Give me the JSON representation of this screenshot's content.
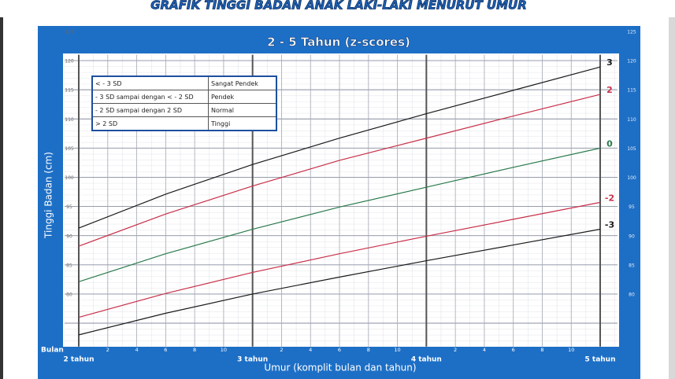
{
  "header": {
    "title": "GRAFIK TINGGI BADAN ANAK LAKI-LAKI MENURUT UMUR"
  },
  "legend_table": [
    {
      "range": "< - 3 SD",
      "label": "Sangat Pendek"
    },
    {
      "range": "- 3 SD sampai dengan < - 2 SD",
      "label": "Pendek"
    },
    {
      "range": "- 2 SD sampai dengan 2 SD",
      "label": "Normal"
    },
    {
      "range": "> 2 SD",
      "label": "Tinggi"
    }
  ],
  "chart_data": {
    "type": "line",
    "title": "2  - 5 Tahun (z-scores)",
    "y_label": "Tinggi Badan (cm)",
    "x_label": "Umur (komplit bulan dan tahun)",
    "x_unit_label": "Bulan",
    "x": [
      24,
      30,
      36,
      42,
      48,
      54,
      60
    ],
    "xlim": [
      24,
      60
    ],
    "ylim": [
      76,
      126
    ],
    "xticks": [
      {
        "value": 24,
        "label": "2 tahun"
      },
      {
        "value": 26,
        "label": "2"
      },
      {
        "value": 28,
        "label": "4"
      },
      {
        "value": 30,
        "label": "6"
      },
      {
        "value": 32,
        "label": "8"
      },
      {
        "value": 34,
        "label": "10"
      },
      {
        "value": 36,
        "label": "3 tahun"
      },
      {
        "value": 38,
        "label": "2"
      },
      {
        "value": 40,
        "label": "4"
      },
      {
        "value": 42,
        "label": "6"
      },
      {
        "value": 44,
        "label": "8"
      },
      {
        "value": 46,
        "label": "10"
      },
      {
        "value": 48,
        "label": "4 tahun"
      },
      {
        "value": 50,
        "label": "2"
      },
      {
        "value": 52,
        "label": "4"
      },
      {
        "value": 54,
        "label": "6"
      },
      {
        "value": 56,
        "label": "8"
      },
      {
        "value": 58,
        "label": "10"
      },
      {
        "value": 60,
        "label": "5 tahun"
      }
    ],
    "yticks": [
      80,
      85,
      90,
      95,
      100,
      105,
      110,
      115,
      120,
      125
    ],
    "grid": true,
    "series": [
      {
        "name": "3",
        "color": "#1a1a1a",
        "values": [
          96.3,
          102.1,
          107.2,
          111.7,
          115.9,
          119.9,
          123.9
        ]
      },
      {
        "name": "2",
        "color": "#c8304a",
        "values": [
          93.2,
          98.7,
          103.5,
          107.9,
          111.7,
          115.5,
          119.2
        ]
      },
      {
        "name": "0",
        "color": "#2a7a4c",
        "values": [
          87.1,
          91.9,
          96.1,
          99.9,
          103.3,
          106.7,
          110.0
        ]
      },
      {
        "name": "-2",
        "color": "#c8304a",
        "values": [
          81.0,
          85.1,
          88.7,
          91.9,
          94.9,
          97.8,
          100.7
        ]
      },
      {
        "name": "-3",
        "color": "#1a1a1a",
        "values": [
          78.0,
          81.7,
          85.0,
          87.9,
          90.7,
          93.4,
          96.1
        ]
      }
    ]
  }
}
